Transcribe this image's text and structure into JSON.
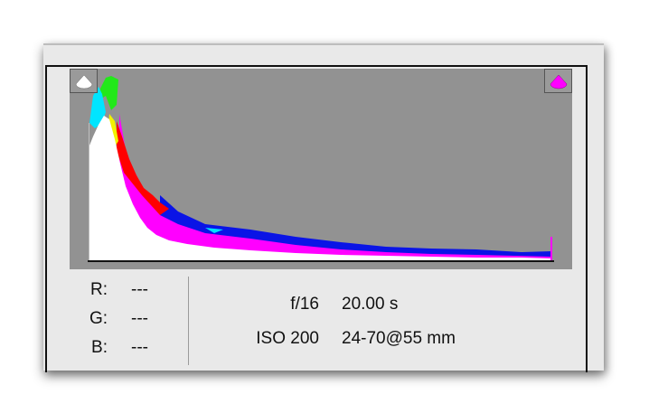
{
  "readout": [
    {
      "label": "R:",
      "value": "---"
    },
    {
      "label": "G:",
      "value": "---"
    },
    {
      "label": "B:",
      "value": "---"
    }
  ],
  "exposure": {
    "aperture": "f/16",
    "shutter": "20.00 s",
    "iso": "ISO 200",
    "lens": "24-70@55 mm"
  },
  "clipping": {
    "shadow_icon": "shadow-clipping-warning-icon",
    "highlight_icon": "highlight-clipping-warning-icon"
  },
  "colors": {
    "panel_bg": "#e9e9e9",
    "histogram_bg": "#929292",
    "white_channel": "#ffffff",
    "cyan": "#00e5ff",
    "green": "#22e81a",
    "yellow": "#f2f200",
    "red": "#ff0000",
    "magenta": "#ff00ff",
    "blue": "#0a14e6"
  }
}
